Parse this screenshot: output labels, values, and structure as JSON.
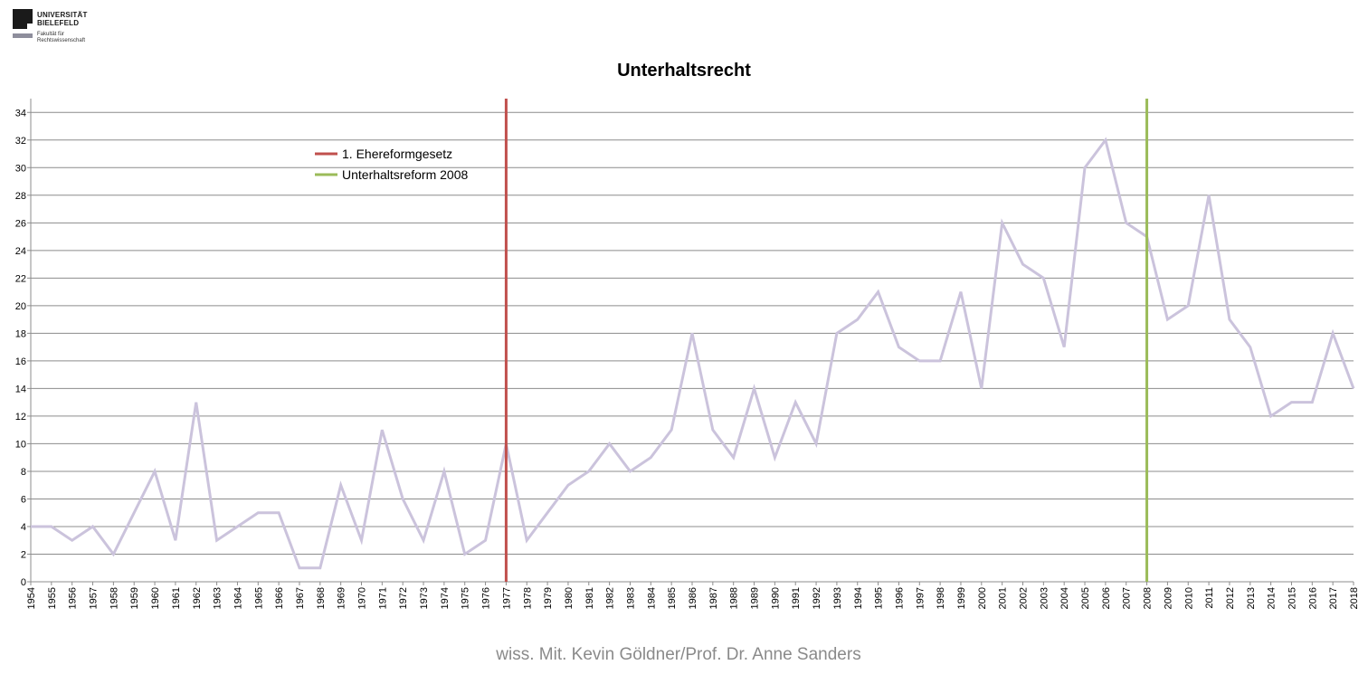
{
  "logo": {
    "university_line1": "UNIVERSITÄT",
    "university_line2": "BIELEFELD",
    "faculty_line1": "Fakultät für",
    "faculty_line2": "Rechtswissenschaft"
  },
  "footer": "wiss. Mit. Kevin Göldner/Prof.  Dr. Anne Sanders",
  "colors": {
    "series": "#cbc3dc",
    "reform1": "#c0504d",
    "reform2008": "#9bbb59",
    "grid": "#8c8c8c"
  },
  "chart_data": {
    "type": "line",
    "title": "Unterhaltsrecht",
    "xlabel": "",
    "ylabel": "",
    "ylim": [
      0,
      35
    ],
    "yticks": [
      0,
      2,
      4,
      6,
      8,
      10,
      12,
      14,
      16,
      18,
      20,
      22,
      24,
      26,
      28,
      30,
      32,
      34
    ],
    "grid": true,
    "legend_position": "top-left",
    "categories": [
      "1954",
      "1955",
      "1956",
      "1957",
      "1958",
      "1959",
      "1960",
      "1961",
      "1962",
      "1963",
      "1964",
      "1965",
      "1966",
      "1967",
      "1968",
      "1969",
      "1970",
      "1971",
      "1972",
      "1973",
      "1974",
      "1975",
      "1976",
      "1977",
      "1978",
      "1979",
      "1980",
      "1981",
      "1982",
      "1983",
      "1984",
      "1985",
      "1986",
      "1987",
      "1988",
      "1989",
      "1990",
      "1991",
      "1992",
      "1993",
      "1994",
      "1995",
      "1996",
      "1997",
      "1998",
      "1999",
      "2000",
      "2001",
      "2002",
      "2003",
      "2004",
      "2005",
      "2006",
      "2007",
      "2008",
      "2009",
      "2010",
      "2011",
      "2012",
      "2013",
      "2014",
      "2015",
      "2016",
      "2017",
      "2018"
    ],
    "values": [
      4,
      4,
      3,
      4,
      2,
      5,
      8,
      3,
      13,
      3,
      4,
      5,
      5,
      1,
      1,
      7,
      3,
      11,
      6,
      3,
      8,
      2,
      3,
      10,
      3,
      5,
      7,
      8,
      10,
      8,
      9,
      11,
      18,
      11,
      9,
      14,
      9,
      13,
      10,
      18,
      19,
      21,
      17,
      16,
      16,
      21,
      14,
      26,
      23,
      22,
      17,
      30,
      32,
      26,
      25,
      19,
      20,
      28,
      19,
      17,
      12,
      13,
      13,
      18,
      14
    ],
    "markers": [
      {
        "name": "1. Ehereformgesetz",
        "x": "1977"
      },
      {
        "name": "Unterhaltsreform 2008",
        "x": "2008"
      }
    ]
  }
}
